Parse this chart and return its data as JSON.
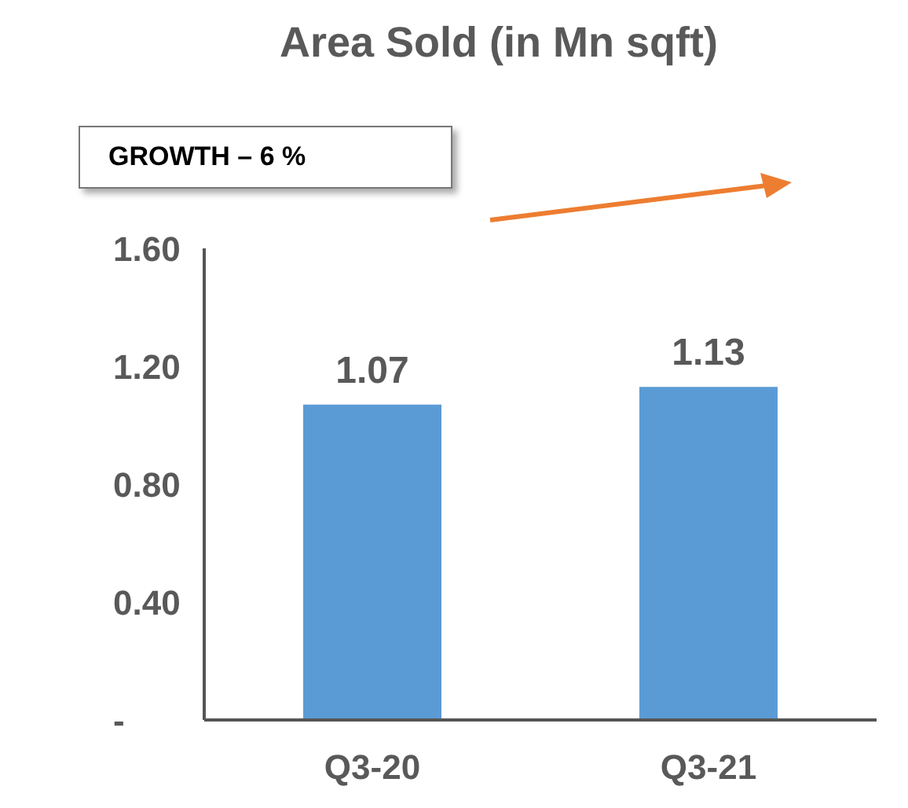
{
  "chart_data": {
    "type": "bar",
    "title": "Area Sold (in Mn sqft)",
    "categories": [
      "Q3-20",
      "Q3-21"
    ],
    "series": [
      {
        "color": "#5b9bd5",
        "values": [
          1.07,
          1.13
        ]
      }
    ],
    "ylim": [
      0,
      1.6
    ],
    "yticks": [
      {
        "value": 0,
        "label": "-"
      },
      {
        "value": 0.4,
        "label": "0.40"
      },
      {
        "value": 0.8,
        "label": "0.80"
      },
      {
        "value": 1.2,
        "label": "1.20"
      },
      {
        "value": 1.6,
        "label": "1.60"
      }
    ],
    "grid": false,
    "legend": false,
    "data_labels": true,
    "annotations": [
      "GROWTH – 6 %"
    ]
  }
}
